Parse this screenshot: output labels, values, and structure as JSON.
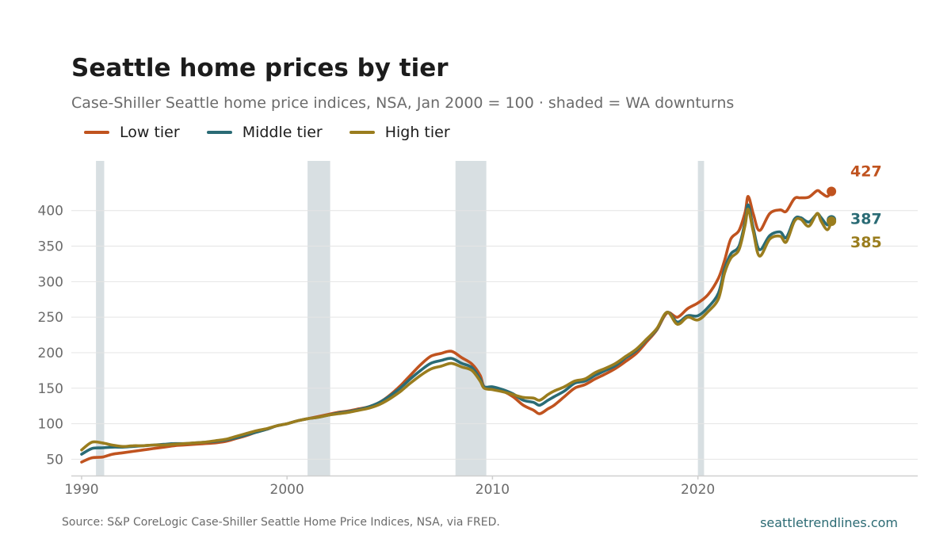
{
  "title": "Seattle home prices by tier",
  "subtitle": "Case-Shiller Seattle home price indices, NSA, Jan 2000 = 100 · shaded = WA downturns",
  "source": "S&P CoreLogic Case-Shiller Seattle Home Price Indices, NSA, via FRED.",
  "source_prefix": "Source:",
  "brand": "seattletrendlines.com",
  "colors": {
    "low": "#c0531f",
    "middle": "#2a6b75",
    "high": "#9a7d1e",
    "recession": "#d8dfe2",
    "grid": "#e4e4e4",
    "axis": "#cfcfcf"
  },
  "chart_data": {
    "type": "line",
    "title": "Seattle home prices by tier",
    "subtitle": "Case-Shiller Seattle home price indices, NSA, Jan 2000 = 100 · shaded = WA downturns",
    "xlabel": "",
    "ylabel": "",
    "xlim": [
      1989.5,
      2030.7
    ],
    "ylim": [
      27,
      470
    ],
    "x_ticks": [
      1990,
      2000,
      2010,
      2020
    ],
    "x_tick_labels": [
      "1990",
      "2000",
      "2010",
      "2020"
    ],
    "y_ticks": [
      50,
      100,
      150,
      200,
      250,
      300,
      350,
      400
    ],
    "y_tick_labels": [
      "50",
      "100",
      "150",
      "200",
      "250",
      "300",
      "350",
      "400"
    ],
    "grid": true,
    "legend_position": "top-left",
    "recessions": [
      [
        1990.7,
        1991.1
      ],
      [
        2001.0,
        2002.1
      ],
      [
        2008.2,
        2009.7
      ],
      [
        2020.0,
        2020.3
      ]
    ],
    "series": [
      {
        "name": "Low tier",
        "color": "#c0531f",
        "end_label": "427",
        "points": [
          [
            1990.0,
            46
          ],
          [
            1990.5,
            52
          ],
          [
            1991.0,
            53
          ],
          [
            1991.5,
            57
          ],
          [
            1992.0,
            59
          ],
          [
            1992.5,
            61
          ],
          [
            1993.0,
            63
          ],
          [
            1993.5,
            65
          ],
          [
            1994.0,
            67
          ],
          [
            1994.5,
            69
          ],
          [
            1995.0,
            70
          ],
          [
            1995.5,
            71
          ],
          [
            1996.0,
            72
          ],
          [
            1996.5,
            73
          ],
          [
            1997.0,
            75
          ],
          [
            1997.5,
            79
          ],
          [
            1998.0,
            83
          ],
          [
            1998.5,
            88
          ],
          [
            1999.0,
            92
          ],
          [
            1999.5,
            97
          ],
          [
            2000.0,
            100
          ],
          [
            2000.5,
            104
          ],
          [
            2001.0,
            107
          ],
          [
            2001.5,
            110
          ],
          [
            2002.0,
            113
          ],
          [
            2002.5,
            116
          ],
          [
            2003.0,
            118
          ],
          [
            2003.5,
            121
          ],
          [
            2004.0,
            124
          ],
          [
            2004.5,
            130
          ],
          [
            2005.0,
            140
          ],
          [
            2005.5,
            153
          ],
          [
            2006.0,
            168
          ],
          [
            2006.5,
            183
          ],
          [
            2007.0,
            195
          ],
          [
            2007.5,
            199
          ],
          [
            2008.0,
            202
          ],
          [
            2008.5,
            193
          ],
          [
            2009.0,
            184
          ],
          [
            2009.4,
            168
          ],
          [
            2009.6,
            152
          ],
          [
            2010.0,
            151
          ],
          [
            2010.5,
            146
          ],
          [
            2011.0,
            138
          ],
          [
            2011.5,
            126
          ],
          [
            2012.0,
            119
          ],
          [
            2012.3,
            114
          ],
          [
            2012.7,
            121
          ],
          [
            2013.0,
            126
          ],
          [
            2013.5,
            138
          ],
          [
            2014.0,
            150
          ],
          [
            2014.5,
            155
          ],
          [
            2015.0,
            163
          ],
          [
            2015.5,
            170
          ],
          [
            2016.0,
            178
          ],
          [
            2016.5,
            188
          ],
          [
            2017.0,
            199
          ],
          [
            2017.5,
            215
          ],
          [
            2018.0,
            232
          ],
          [
            2018.5,
            256
          ],
          [
            2019.0,
            250
          ],
          [
            2019.5,
            262
          ],
          [
            2020.0,
            270
          ],
          [
            2020.5,
            282
          ],
          [
            2021.0,
            305
          ],
          [
            2021.3,
            330
          ],
          [
            2021.6,
            360
          ],
          [
            2022.0,
            372
          ],
          [
            2022.3,
            398
          ],
          [
            2022.45,
            420
          ],
          [
            2022.7,
            395
          ],
          [
            2023.0,
            372
          ],
          [
            2023.5,
            396
          ],
          [
            2024.0,
            401
          ],
          [
            2024.3,
            399
          ],
          [
            2024.7,
            417
          ],
          [
            2025.0,
            418
          ],
          [
            2025.4,
            419
          ],
          [
            2025.8,
            428
          ],
          [
            2026.0,
            425
          ],
          [
            2026.3,
            420
          ],
          [
            2026.5,
            427
          ]
        ]
      },
      {
        "name": "Middle tier",
        "color": "#2a6b75",
        "end_label": "387",
        "points": [
          [
            1990.0,
            57
          ],
          [
            1990.5,
            65
          ],
          [
            1991.0,
            66
          ],
          [
            1991.5,
            67
          ],
          [
            1992.0,
            67
          ],
          [
            1992.5,
            68
          ],
          [
            1993.0,
            69
          ],
          [
            1993.5,
            70
          ],
          [
            1994.0,
            71
          ],
          [
            1994.5,
            72
          ],
          [
            1995.0,
            72
          ],
          [
            1995.5,
            73
          ],
          [
            1996.0,
            74
          ],
          [
            1996.5,
            75
          ],
          [
            1997.0,
            77
          ],
          [
            1997.5,
            80
          ],
          [
            1998.0,
            84
          ],
          [
            1998.5,
            88
          ],
          [
            1999.0,
            92
          ],
          [
            1999.5,
            97
          ],
          [
            2000.0,
            100
          ],
          [
            2000.5,
            104
          ],
          [
            2001.0,
            107
          ],
          [
            2001.5,
            109
          ],
          [
            2002.0,
            112
          ],
          [
            2002.5,
            115
          ],
          [
            2003.0,
            117
          ],
          [
            2003.5,
            120
          ],
          [
            2004.0,
            124
          ],
          [
            2004.5,
            130
          ],
          [
            2005.0,
            139
          ],
          [
            2005.5,
            150
          ],
          [
            2006.0,
            163
          ],
          [
            2006.5,
            175
          ],
          [
            2007.0,
            185
          ],
          [
            2007.5,
            189
          ],
          [
            2008.0,
            192
          ],
          [
            2008.5,
            185
          ],
          [
            2009.0,
            179
          ],
          [
            2009.4,
            163
          ],
          [
            2009.6,
            152
          ],
          [
            2010.0,
            152
          ],
          [
            2010.5,
            148
          ],
          [
            2011.0,
            142
          ],
          [
            2011.5,
            133
          ],
          [
            2012.0,
            130
          ],
          [
            2012.3,
            126
          ],
          [
            2012.7,
            133
          ],
          [
            2013.0,
            138
          ],
          [
            2013.5,
            146
          ],
          [
            2014.0,
            157
          ],
          [
            2014.5,
            160
          ],
          [
            2015.0,
            168
          ],
          [
            2015.5,
            175
          ],
          [
            2016.0,
            182
          ],
          [
            2016.5,
            193
          ],
          [
            2017.0,
            203
          ],
          [
            2017.5,
            218
          ],
          [
            2018.0,
            233
          ],
          [
            2018.5,
            257
          ],
          [
            2019.0,
            243
          ],
          [
            2019.5,
            252
          ],
          [
            2020.0,
            252
          ],
          [
            2020.5,
            264
          ],
          [
            2021.0,
            284
          ],
          [
            2021.3,
            318
          ],
          [
            2021.6,
            339
          ],
          [
            2022.0,
            350
          ],
          [
            2022.3,
            385
          ],
          [
            2022.45,
            408
          ],
          [
            2022.7,
            375
          ],
          [
            2023.0,
            345
          ],
          [
            2023.5,
            365
          ],
          [
            2024.0,
            370
          ],
          [
            2024.3,
            362
          ],
          [
            2024.7,
            388
          ],
          [
            2025.0,
            390
          ],
          [
            2025.4,
            384
          ],
          [
            2025.8,
            395
          ],
          [
            2026.0,
            390
          ],
          [
            2026.3,
            380
          ],
          [
            2026.5,
            387
          ]
        ]
      },
      {
        "name": "High tier",
        "color": "#9a7d1e",
        "end_label": "385",
        "points": [
          [
            1990.0,
            63
          ],
          [
            1990.5,
            74
          ],
          [
            1991.0,
            73
          ],
          [
            1991.5,
            70
          ],
          [
            1992.0,
            68
          ],
          [
            1992.5,
            69
          ],
          [
            1993.0,
            69
          ],
          [
            1993.5,
            70
          ],
          [
            1994.0,
            70
          ],
          [
            1994.5,
            71
          ],
          [
            1995.0,
            72
          ],
          [
            1995.5,
            73
          ],
          [
            1996.0,
            74
          ],
          [
            1996.5,
            76
          ],
          [
            1997.0,
            78
          ],
          [
            1997.5,
            82
          ],
          [
            1998.0,
            86
          ],
          [
            1998.5,
            90
          ],
          [
            1999.0,
            93
          ],
          [
            1999.5,
            97
          ],
          [
            2000.0,
            100
          ],
          [
            2000.5,
            104
          ],
          [
            2001.0,
            107
          ],
          [
            2001.5,
            109
          ],
          [
            2002.0,
            112
          ],
          [
            2002.5,
            114
          ],
          [
            2003.0,
            116
          ],
          [
            2003.5,
            119
          ],
          [
            2004.0,
            122
          ],
          [
            2004.5,
            127
          ],
          [
            2005.0,
            135
          ],
          [
            2005.5,
            145
          ],
          [
            2006.0,
            157
          ],
          [
            2006.5,
            168
          ],
          [
            2007.0,
            177
          ],
          [
            2007.5,
            181
          ],
          [
            2008.0,
            185
          ],
          [
            2008.5,
            180
          ],
          [
            2009.0,
            175
          ],
          [
            2009.4,
            160
          ],
          [
            2009.6,
            150
          ],
          [
            2010.0,
            148
          ],
          [
            2010.5,
            145
          ],
          [
            2011.0,
            141
          ],
          [
            2011.5,
            137
          ],
          [
            2012.0,
            136
          ],
          [
            2012.3,
            133
          ],
          [
            2012.7,
            141
          ],
          [
            2013.0,
            146
          ],
          [
            2013.5,
            152
          ],
          [
            2014.0,
            160
          ],
          [
            2014.5,
            163
          ],
          [
            2015.0,
            172
          ],
          [
            2015.5,
            178
          ],
          [
            2016.0,
            185
          ],
          [
            2016.5,
            195
          ],
          [
            2017.0,
            205
          ],
          [
            2017.5,
            219
          ],
          [
            2018.0,
            234
          ],
          [
            2018.5,
            257
          ],
          [
            2019.0,
            240
          ],
          [
            2019.5,
            250
          ],
          [
            2020.0,
            246
          ],
          [
            2020.5,
            258
          ],
          [
            2021.0,
            276
          ],
          [
            2021.3,
            312
          ],
          [
            2021.6,
            333
          ],
          [
            2022.0,
            345
          ],
          [
            2022.3,
            380
          ],
          [
            2022.45,
            402
          ],
          [
            2022.7,
            370
          ],
          [
            2023.0,
            336
          ],
          [
            2023.5,
            360
          ],
          [
            2024.0,
            364
          ],
          [
            2024.3,
            356
          ],
          [
            2024.7,
            385
          ],
          [
            2025.0,
            388
          ],
          [
            2025.4,
            378
          ],
          [
            2025.8,
            396
          ],
          [
            2026.0,
            385
          ],
          [
            2026.3,
            373
          ],
          [
            2026.5,
            385
          ]
        ]
      }
    ]
  }
}
